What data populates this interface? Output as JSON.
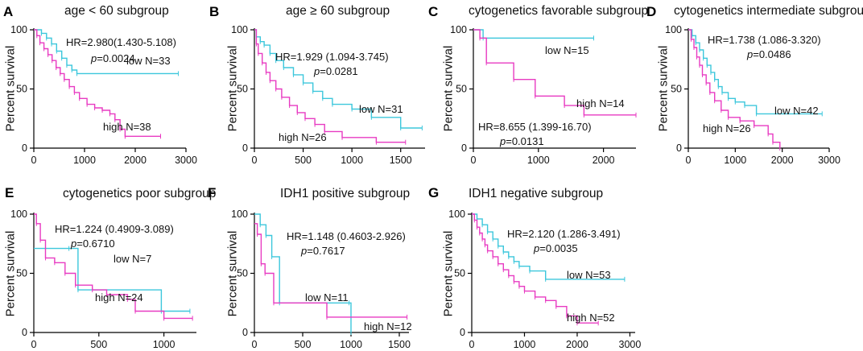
{
  "colors": {
    "low": "#3dc7dc",
    "high": "#e83bc2"
  },
  "chart_data": [
    {
      "type": "line",
      "letter": "A",
      "title": "age < 60 subgroup",
      "ylabel": "Percent survival",
      "xlabel": "",
      "xlim": [
        0,
        3000
      ],
      "ylim": [
        0,
        100
      ],
      "xticks": [
        0,
        1000,
        2000,
        3000
      ],
      "yticks": [
        0,
        50,
        100
      ],
      "hr_text": "HR=2.980(1.430-5.108)",
      "p_label": "p",
      "p_value": "=0.0024",
      "series": [
        {
          "name": "low",
          "label": "low N=33",
          "x": [
            0,
            150,
            250,
            350,
            450,
            550,
            650,
            750,
            850,
            2850
          ],
          "y": [
            100,
            97,
            93,
            88,
            82,
            76,
            70,
            66,
            63,
            63
          ]
        },
        {
          "name": "high",
          "label": "high N=38",
          "x": [
            0,
            60,
            120,
            200,
            280,
            360,
            440,
            520,
            600,
            700,
            800,
            900,
            1050,
            1200,
            1350,
            1500,
            1600,
            1700,
            1800,
            2500
          ],
          "y": [
            100,
            95,
            89,
            84,
            79,
            74,
            68,
            63,
            58,
            52,
            47,
            42,
            37,
            34,
            32,
            29,
            24,
            16,
            10,
            10
          ]
        }
      ]
    },
    {
      "type": "line",
      "letter": "B",
      "title": "age ≥ 60 subgroup",
      "ylabel": "Percent survival",
      "xlabel": "",
      "xlim": [
        0,
        1750
      ],
      "ylim": [
        0,
        100
      ],
      "xticks": [
        0,
        500,
        1000,
        1500
      ],
      "yticks": [
        0,
        50,
        100
      ],
      "hr_text": "HR=1.929 (1.094-3.745)",
      "p_label": "p",
      "p_value": "=0.0281",
      "series": [
        {
          "name": "low",
          "label": "low N=31",
          "x": [
            0,
            20,
            60,
            100,
            160,
            220,
            300,
            400,
            500,
            600,
            700,
            800,
            1000,
            1200,
            1500,
            1720
          ],
          "y": [
            100,
            94,
            90,
            87,
            80,
            74,
            68,
            62,
            55,
            48,
            42,
            37,
            33,
            26,
            17,
            17
          ]
        },
        {
          "name": "high",
          "label": "high N=26",
          "x": [
            0,
            20,
            40,
            80,
            120,
            160,
            220,
            280,
            360,
            440,
            520,
            620,
            720,
            900,
            1250,
            1550
          ],
          "y": [
            100,
            88,
            80,
            72,
            64,
            57,
            50,
            43,
            36,
            30,
            25,
            20,
            14,
            9,
            5,
            5
          ]
        }
      ]
    },
    {
      "type": "line",
      "letter": "C",
      "title": "cytogenetics favorable subgroup",
      "ylabel": "Percent survival",
      "xlabel": "",
      "xlim": [
        0,
        2500
      ],
      "ylim": [
        0,
        100
      ],
      "xticks": [
        0,
        1000,
        2000
      ],
      "yticks": [
        0,
        50,
        100
      ],
      "hr_text": "HR=8.655 (1.399-16.70)",
      "p_label": "p",
      "p_value": "=0.0131",
      "series": [
        {
          "name": "low",
          "label": "low N=15",
          "x": [
            0,
            150,
            1850
          ],
          "y": [
            100,
            93,
            93
          ]
        },
        {
          "name": "high",
          "label": "high N=14",
          "x": [
            0,
            100,
            200,
            620,
            950,
            1400,
            1700,
            2500
          ],
          "y": [
            100,
            93,
            72,
            58,
            44,
            36,
            28,
            28
          ]
        }
      ]
    },
    {
      "type": "line",
      "letter": "D",
      "title": "cytogenetics intermediate subgroup",
      "ylabel": "Percent survival",
      "xlabel": "",
      "xlim": [
        0,
        3000
      ],
      "ylim": [
        0,
        100
      ],
      "xticks": [
        0,
        1000,
        2000,
        3000
      ],
      "yticks": [
        0,
        50,
        100
      ],
      "hr_text": "HR=1.738 (1.086-3.320)",
      "p_label": "p",
      "p_value": "=0.0486",
      "series": [
        {
          "name": "low",
          "label": "low N=42",
          "x": [
            0,
            80,
            160,
            240,
            320,
            400,
            480,
            560,
            640,
            720,
            850,
            1000,
            1200,
            1450,
            2850
          ],
          "y": [
            100,
            95,
            89,
            83,
            76,
            70,
            64,
            58,
            52,
            47,
            42,
            39,
            36,
            29,
            29
          ]
        },
        {
          "name": "high",
          "label": "high N=26",
          "x": [
            0,
            60,
            120,
            180,
            240,
            300,
            380,
            460,
            560,
            700,
            850,
            1100,
            1400,
            1700,
            1800,
            1950
          ],
          "y": [
            100,
            92,
            85,
            77,
            70,
            62,
            55,
            47,
            40,
            32,
            26,
            23,
            19,
            12,
            5,
            0
          ]
        }
      ]
    },
    {
      "type": "line",
      "letter": "E",
      "title": "cytogenetics poor subgroup",
      "ylabel": "Percent survival",
      "xlabel": "",
      "xlim": [
        0,
        1250
      ],
      "ylim": [
        0,
        100
      ],
      "xticks": [
        0,
        500,
        1000
      ],
      "yticks": [
        0,
        50,
        100
      ],
      "hr_text": "HR=1.224 (0.4909-3.089)",
      "p_label": "p",
      "p_value": "=0.6710",
      "series": [
        {
          "name": "low",
          "label": "low N=7",
          "x": [
            0,
            270,
            340,
            980,
            1200
          ],
          "y": [
            71,
            71,
            36,
            18,
            18
          ]
        },
        {
          "name": "high",
          "label": "high N=24",
          "x": [
            0,
            20,
            50,
            90,
            160,
            240,
            320,
            450,
            560,
            720,
            780,
            1000,
            1220
          ],
          "y": [
            100,
            92,
            78,
            63,
            59,
            50,
            40,
            36,
            32,
            28,
            18,
            12,
            12
          ]
        }
      ]
    },
    {
      "type": "line",
      "letter": "F",
      "title": "IDH1 positive subgroup",
      "ylabel": "Percent survival",
      "xlabel": "",
      "xlim": [
        0,
        1600
      ],
      "ylim": [
        0,
        100
      ],
      "xticks": [
        0,
        500,
        1000,
        1500
      ],
      "yticks": [
        0,
        50,
        100
      ],
      "hr_text": "HR=1.148 (0.4603-2.926)",
      "p_label": "p",
      "p_value": "=0.7617",
      "series": [
        {
          "name": "low",
          "label": "low N=11",
          "x": [
            0,
            60,
            120,
            180,
            260,
            980,
            1000
          ],
          "y": [
            100,
            91,
            82,
            64,
            25,
            25,
            0
          ]
        },
        {
          "name": "high",
          "label": "high N=12",
          "x": [
            0,
            30,
            70,
            110,
            200,
            750,
            1580
          ],
          "y": [
            92,
            83,
            58,
            50,
            25,
            13,
            13
          ]
        }
      ]
    },
    {
      "type": "line",
      "letter": "G",
      "title": "IDH1 negative subgroup",
      "ylabel": "Percent survival",
      "xlabel": "",
      "xlim": [
        0,
        3100
      ],
      "ylim": [
        0,
        100
      ],
      "xticks": [
        0,
        1000,
        2000,
        3000
      ],
      "yticks": [
        0,
        50,
        100
      ],
      "hr_text": "HR=2.120 (1.286-3.491)",
      "p_label": "p",
      "p_value": "=0.0035",
      "series": [
        {
          "name": "low",
          "label": "low N=53",
          "x": [
            0,
            100,
            200,
            300,
            400,
            500,
            600,
            700,
            800,
            900,
            1100,
            1400,
            2900
          ],
          "y": [
            100,
            96,
            91,
            85,
            79,
            73,
            68,
            64,
            60,
            56,
            52,
            45,
            45
          ]
        },
        {
          "name": "high",
          "label": "high N=52",
          "x": [
            0,
            50,
            100,
            150,
            200,
            250,
            300,
            400,
            500,
            600,
            700,
            800,
            900,
            1000,
            1200,
            1400,
            1600,
            1800,
            2000,
            2400
          ],
          "y": [
            100,
            95,
            89,
            84,
            79,
            74,
            69,
            64,
            58,
            53,
            48,
            43,
            39,
            35,
            30,
            27,
            22,
            14,
            8,
            8
          ]
        }
      ]
    }
  ]
}
